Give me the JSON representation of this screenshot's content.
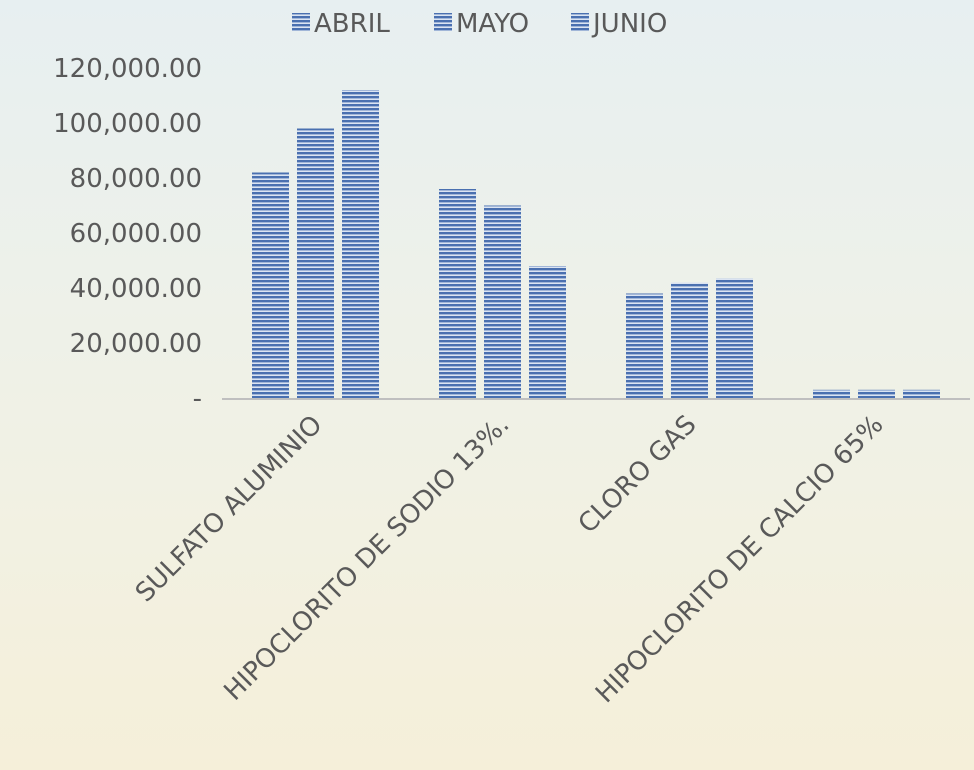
{
  "chart_data": {
    "type": "bar",
    "categories": [
      "SULFATO ALUMINIO",
      "HIPOCLORITO DE SODIO 13%.",
      "CLORO GAS",
      "HIPOCLORITO DE CALCIO 65%"
    ],
    "series": [
      {
        "name": "ABRIL",
        "values": [
          82000,
          76000,
          38000,
          3000
        ]
      },
      {
        "name": "MAYO",
        "values": [
          98000,
          70000,
          42000,
          3000
        ]
      },
      {
        "name": "JUNIO",
        "values": [
          112000,
          48000,
          43500,
          3000
        ]
      }
    ],
    "y_ticks": [
      "-",
      "20,000.00",
      "40,000.00",
      "60,000.00",
      "80,000.00",
      "100,000.00",
      "120,000.00"
    ],
    "ylim": [
      0,
      120000
    ],
    "legend_position": "top",
    "grid": false,
    "colors": {
      "bar": "#4a70b0",
      "bar_stripe": "#dbe4f2",
      "axis": "#bfbfbf",
      "text": "#595959"
    }
  }
}
